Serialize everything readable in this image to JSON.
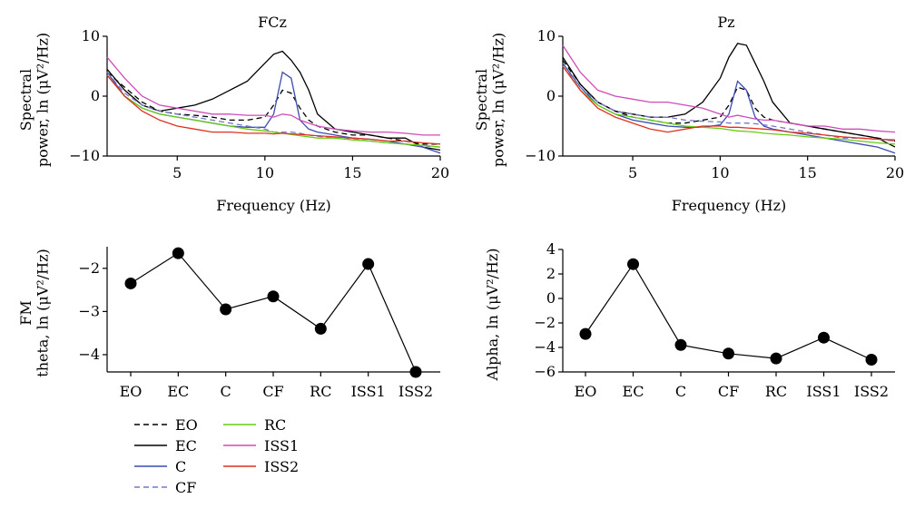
{
  "chart_data": [
    {
      "type": "line",
      "title": "FCz",
      "xlabel": "Frequency (Hz)",
      "ylabel_line1": "Spectral",
      "ylabel_line2": "power, ln (μV²/Hz)",
      "xlim": [
        1,
        20
      ],
      "ylim": [
        -10,
        10
      ],
      "xticks": [
        5,
        10,
        15,
        20
      ],
      "yticks": [
        -10,
        0,
        10
      ],
      "x": [
        1,
        2,
        3,
        4,
        5,
        6,
        7,
        8,
        9,
        10,
        10.5,
        11,
        11.5,
        12,
        12.5,
        13,
        14,
        15,
        16,
        17,
        18,
        19,
        20
      ],
      "series": [
        {
          "name": "EO",
          "color": "#000000",
          "dash": "6,4",
          "values": [
            4,
            1.5,
            -1,
            -2.5,
            -3,
            -3.2,
            -3.5,
            -4,
            -4,
            -3.5,
            -1.5,
            1,
            0.5,
            -2,
            -4,
            -5,
            -6,
            -6.5,
            -6.5,
            -7,
            -7.5,
            -8,
            -8
          ]
        },
        {
          "name": "EC",
          "color": "#000000",
          "dash": "",
          "values": [
            4.5,
            1,
            -1.5,
            -2.5,
            -2,
            -1.5,
            -0.5,
            1,
            2.5,
            5.5,
            7,
            7.5,
            6,
            4,
            1,
            -3,
            -5.5,
            -6,
            -6.5,
            -7,
            -7,
            -8.5,
            -9
          ]
        },
        {
          "name": "C",
          "color": "#3a4db0",
          "dash": "",
          "values": [
            4,
            0,
            -2,
            -3,
            -3.5,
            -4,
            -4.5,
            -5,
            -5.2,
            -5.2,
            -3,
            4,
            3,
            -4,
            -5.5,
            -6,
            -6.5,
            -7,
            -7.2,
            -7.5,
            -8,
            -8.5,
            -9.5
          ]
        },
        {
          "name": "CF",
          "color": "#7777cc",
          "dash": "6,4",
          "values": [
            4,
            0.5,
            -1.5,
            -2.5,
            -3,
            -3.5,
            -4,
            -4.5,
            -5,
            -5.5,
            -6,
            -6,
            -6,
            -6.2,
            -6.5,
            -6.7,
            -7,
            -7.2,
            -7.5,
            -7.8,
            -8,
            -8.3,
            -8.5
          ]
        },
        {
          "name": "RC",
          "color": "#66cc11",
          "dash": "",
          "values": [
            3.5,
            0,
            -2,
            -3,
            -3.5,
            -4,
            -4.5,
            -5,
            -5.5,
            -5.8,
            -6,
            -6.2,
            -6.4,
            -6.6,
            -6.8,
            -7,
            -7,
            -7.3,
            -7.5,
            -7.8,
            -8,
            -8.2,
            -8.5
          ]
        },
        {
          "name": "ISS1",
          "color": "#d04cb8",
          "dash": "",
          "values": [
            6.5,
            3,
            0,
            -1.5,
            -2,
            -2.5,
            -3,
            -3,
            -3.2,
            -3.2,
            -3.5,
            -3,
            -3.2,
            -4,
            -4.5,
            -5,
            -5.5,
            -5.8,
            -6,
            -6,
            -6.2,
            -6.5,
            -6.5
          ]
        },
        {
          "name": "ISS2",
          "color": "#e03020",
          "dash": "",
          "values": [
            3.5,
            0,
            -2.5,
            -4,
            -5,
            -5.5,
            -6,
            -6,
            -6.2,
            -6.2,
            -6.3,
            -6.2,
            -6.3,
            -6.4,
            -6.5,
            -6.6,
            -6.8,
            -7,
            -7.2,
            -7.5,
            -7.5,
            -7.8,
            -8
          ]
        }
      ]
    },
    {
      "type": "line",
      "title": "Pz",
      "xlabel": "Frequency (Hz)",
      "ylabel_line1": "Spectral",
      "ylabel_line2": "power, ln (μV²/Hz)",
      "xlim": [
        1,
        20
      ],
      "ylim": [
        -10,
        10
      ],
      "xticks": [
        5,
        10,
        15,
        20
      ],
      "yticks": [
        -10,
        0,
        10
      ],
      "x": [
        1,
        2,
        3,
        4,
        5,
        6,
        7,
        8,
        9,
        10,
        10.5,
        11,
        11.5,
        12,
        12.5,
        13,
        14,
        15,
        16,
        17,
        18,
        19,
        20
      ],
      "series": [
        {
          "name": "EO",
          "color": "#000000",
          "dash": "6,4",
          "values": [
            6,
            2,
            -1,
            -2.5,
            -3.5,
            -4,
            -4.5,
            -4.5,
            -4,
            -3.5,
            -1.5,
            1.5,
            1,
            -2,
            -3.5,
            -4,
            -4.5,
            -5,
            -5.5,
            -6,
            -6.5,
            -7,
            -7.5
          ]
        },
        {
          "name": "EC",
          "color": "#000000",
          "dash": "",
          "values": [
            6.5,
            2,
            -1,
            -2.5,
            -3,
            -3.5,
            -3.5,
            -3,
            -1,
            3,
            6.5,
            8.8,
            8.5,
            5.5,
            2.5,
            -1,
            -4.5,
            -5,
            -5.5,
            -6,
            -6.5,
            -7,
            -8.5
          ]
        },
        {
          "name": "C",
          "color": "#3a4db0",
          "dash": "",
          "values": [
            5.5,
            1.5,
            -1.5,
            -3,
            -4,
            -4.5,
            -5,
            -5.2,
            -5.2,
            -4.8,
            -3,
            2.5,
            1,
            -3.5,
            -5,
            -5.5,
            -6,
            -6.5,
            -7,
            -7.5,
            -8,
            -8.5,
            -9.5
          ]
        },
        {
          "name": "CF",
          "color": "#7777cc",
          "dash": "6,4",
          "values": [
            5,
            1.5,
            -1,
            -2.5,
            -3,
            -3.5,
            -3.5,
            -4,
            -4.2,
            -4.3,
            -4.5,
            -4.5,
            -4.5,
            -4.6,
            -4.8,
            -5,
            -5.5,
            -6,
            -6.5,
            -7,
            -7,
            -7.2,
            -7.5
          ]
        },
        {
          "name": "RC",
          "color": "#66cc11",
          "dash": "",
          "values": [
            5,
            1,
            -1.5,
            -3,
            -3.5,
            -4,
            -4.5,
            -5,
            -5.2,
            -5.4,
            -5.6,
            -5.8,
            -5.9,
            -6,
            -6.2,
            -6.3,
            -6.5,
            -6.8,
            -7,
            -7.2,
            -7.5,
            -7.8,
            -8
          ]
        },
        {
          "name": "ISS1",
          "color": "#d04cb8",
          "dash": "",
          "values": [
            8.5,
            4,
            1,
            0,
            -0.5,
            -1,
            -1,
            -1.5,
            -2,
            -3,
            -3.5,
            -3.2,
            -3.5,
            -3.8,
            -4,
            -4,
            -4.5,
            -5,
            -5,
            -5.5,
            -5.5,
            -5.8,
            -6
          ]
        },
        {
          "name": "ISS2",
          "color": "#e03020",
          "dash": "",
          "values": [
            5,
            1,
            -2,
            -3.5,
            -4.5,
            -5.5,
            -6,
            -5.5,
            -5,
            -5,
            -5.2,
            -5.2,
            -5.3,
            -5.4,
            -5.5,
            -5.6,
            -6,
            -6.2,
            -6.5,
            -6.8,
            -7,
            -7.2,
            -7.3
          ]
        }
      ]
    },
    {
      "type": "line",
      "ylabel_line1": "FM",
      "ylabel_line2": "theta, ln (μV²/Hz)",
      "categories": [
        "EO",
        "EC",
        "C",
        "CF",
        "RC",
        "ISS1",
        "ISS2"
      ],
      "values": [
        -2.35,
        -1.65,
        -2.95,
        -2.65,
        -3.4,
        -1.9,
        -4.4
      ],
      "ylim": [
        -4.4,
        -1.5
      ],
      "yticks": [
        -4,
        -3,
        -2
      ],
      "color": "#000000"
    },
    {
      "type": "line",
      "ylabel_line1": "Alpha, ln (μV²/Hz)",
      "categories": [
        "EO",
        "EC",
        "C",
        "CF",
        "RC",
        "ISS1",
        "ISS2"
      ],
      "values": [
        -2.9,
        2.8,
        -3.8,
        -4.5,
        -4.9,
        -3.2,
        -5.0
      ],
      "ylim": [
        -6,
        4
      ],
      "yticks": [
        -6,
        -4,
        -2,
        0,
        2,
        4
      ],
      "color": "#000000"
    }
  ],
  "legend": {
    "entries": [
      {
        "name": "EO",
        "color": "#000000",
        "dash": "6,4"
      },
      {
        "name": "EC",
        "color": "#000000",
        "dash": ""
      },
      {
        "name": "C",
        "color": "#3a4db0",
        "dash": ""
      },
      {
        "name": "CF",
        "color": "#7777cc",
        "dash": "6,4"
      },
      {
        "name": "RC",
        "color": "#66cc11",
        "dash": ""
      },
      {
        "name": "ISS1",
        "color": "#d04cb8",
        "dash": ""
      },
      {
        "name": "ISS2",
        "color": "#e03020",
        "dash": ""
      }
    ]
  }
}
